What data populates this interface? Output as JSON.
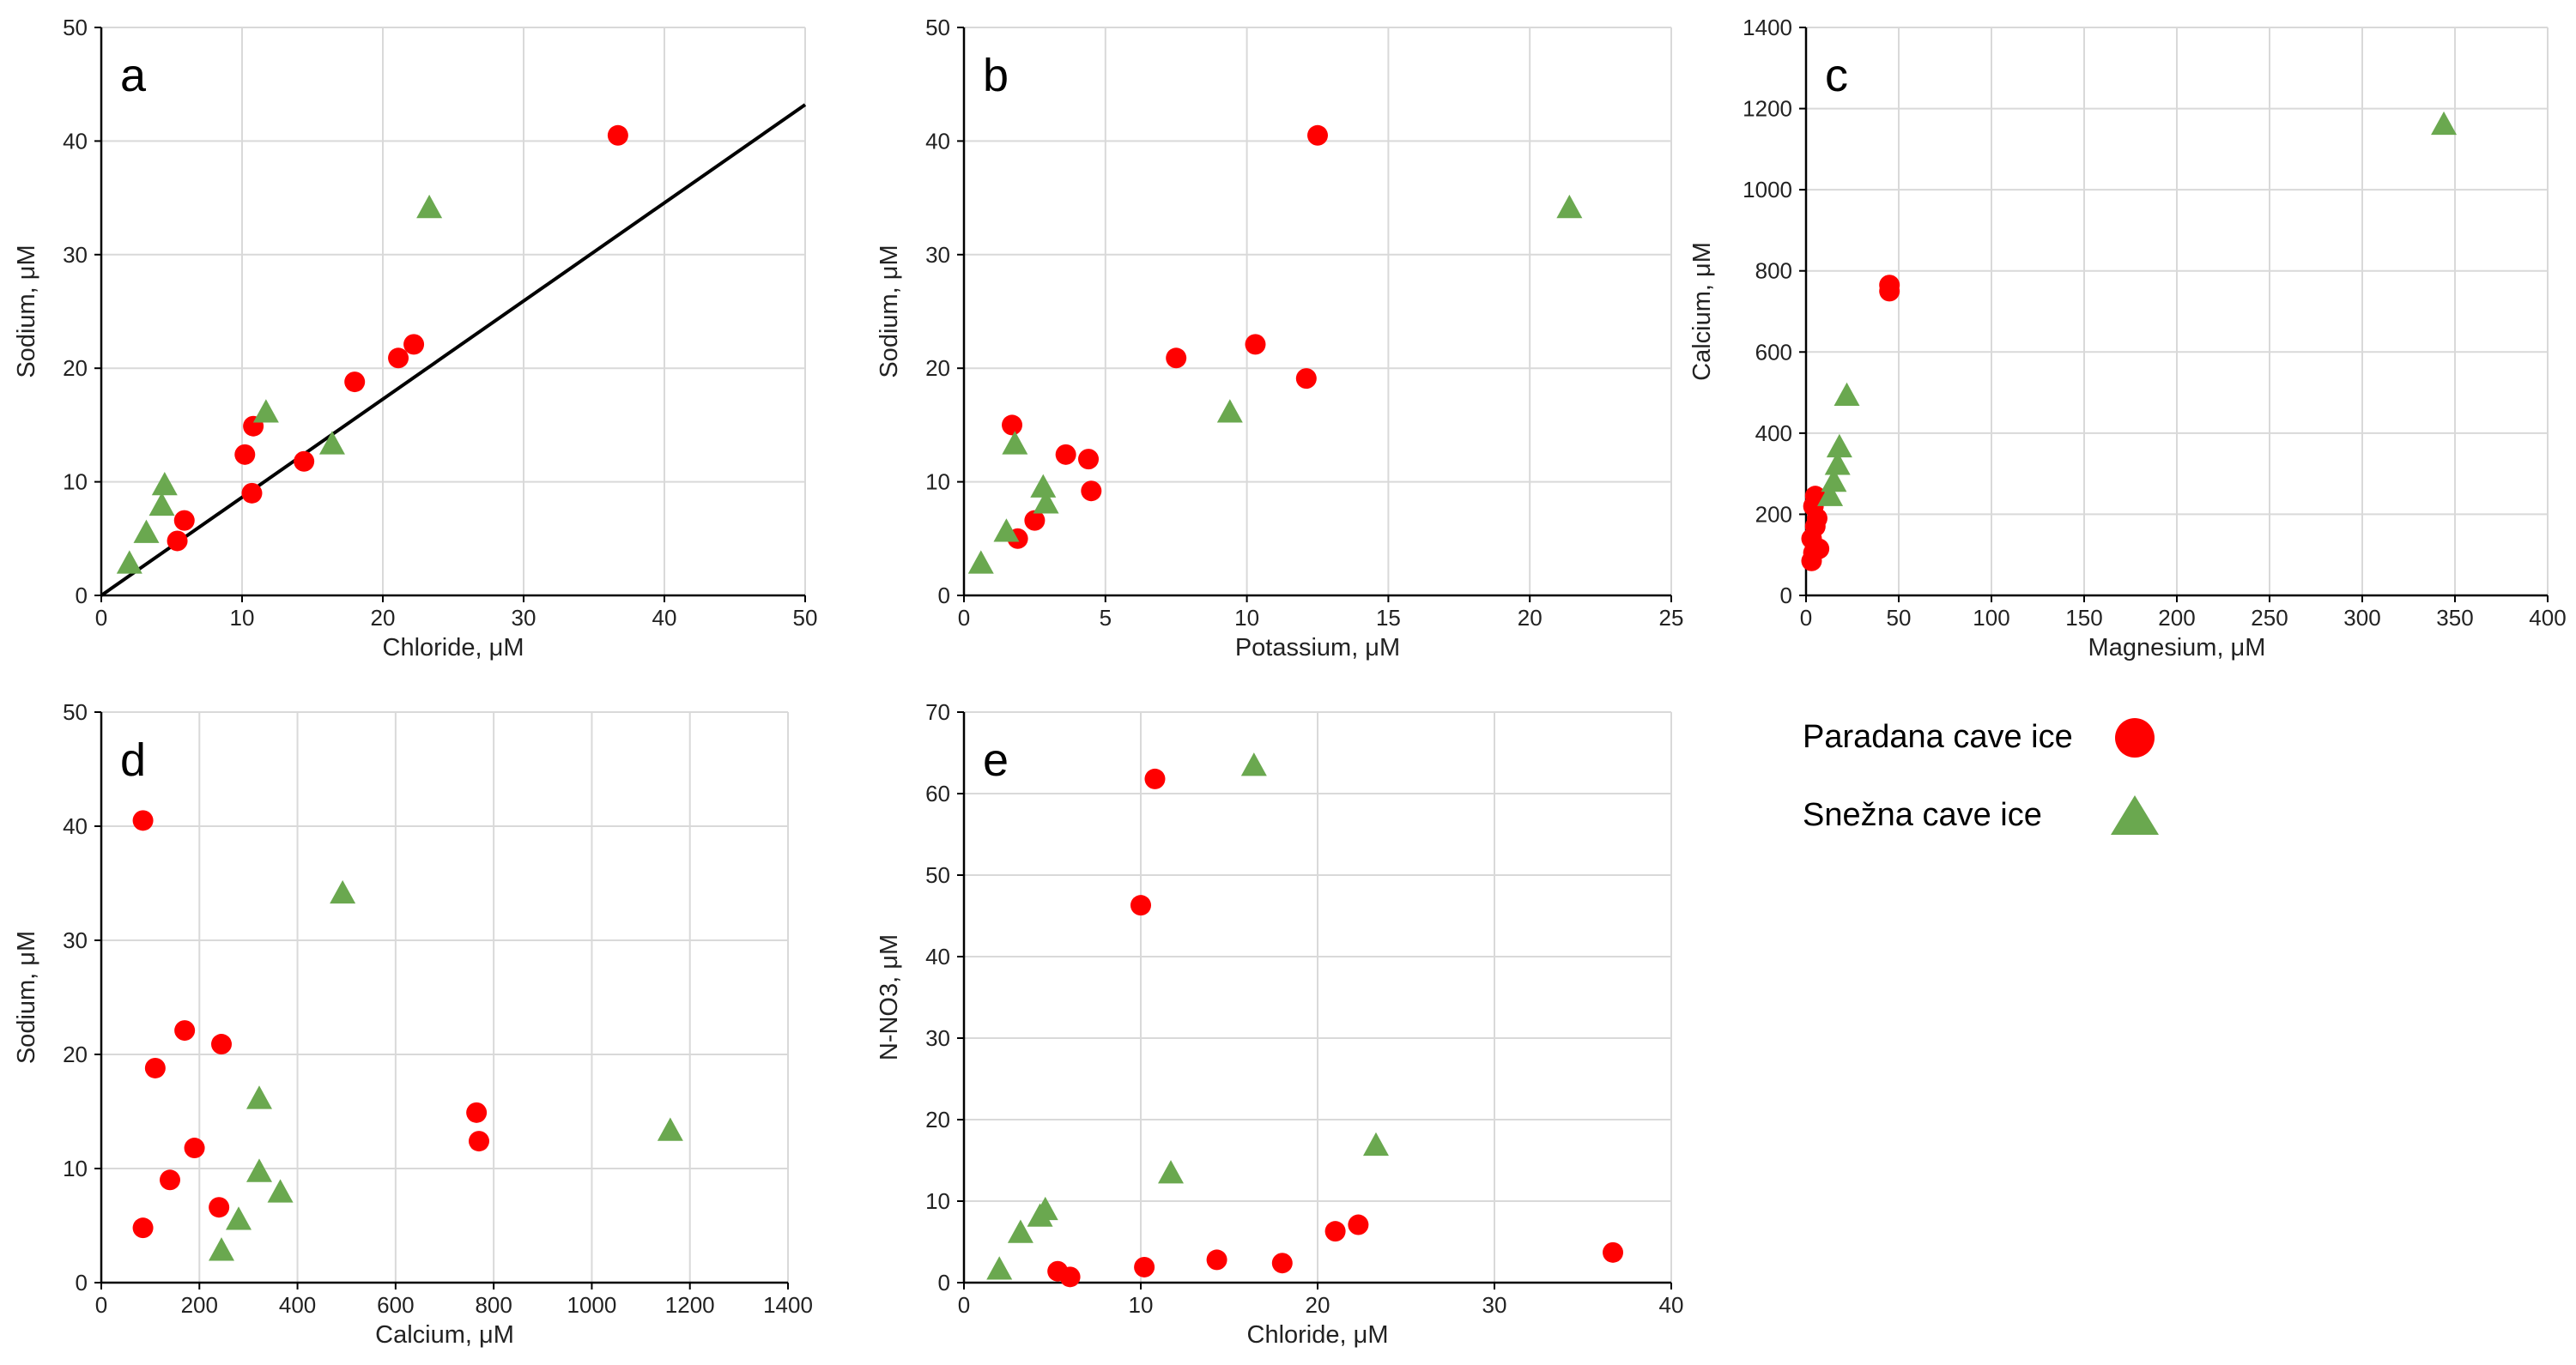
{
  "colors": {
    "paradana": "#ff0000",
    "snezna": "#6aa84f",
    "grid": "#d9d9d9",
    "axis": "#000000",
    "fit_line": "#000000"
  },
  "legend": {
    "items": [
      {
        "label": "Paradana cave ice",
        "marker": "circle",
        "color": "#ff0000"
      },
      {
        "label": "Snežna cave ice",
        "marker": "triangle",
        "color": "#6aa84f"
      }
    ]
  },
  "chart_data": [
    {
      "id": "a",
      "letter": "a",
      "type": "scatter",
      "xlabel": "Chloride, μM",
      "ylabel": "Sodium, μM",
      "xlim": [
        0,
        50
      ],
      "ylim": [
        0,
        50
      ],
      "xticks": [
        0,
        10,
        20,
        30,
        40,
        50
      ],
      "yticks": [
        0,
        10,
        20,
        30,
        40,
        50
      ],
      "tick_labels_x": [
        "0",
        "10",
        "20",
        "30",
        "40",
        "50"
      ],
      "tick_labels_y": [
        "0",
        "10",
        "20",
        "30",
        "40",
        "50"
      ],
      "line": {
        "x": [
          0,
          50
        ],
        "y": [
          0,
          43.2
        ]
      },
      "series": [
        {
          "name": "Paradana cave ice",
          "marker": "circle",
          "points": [
            [
              36.7,
              40.5
            ],
            [
              22.2,
              22.1
            ],
            [
              21.1,
              20.9
            ],
            [
              18.0,
              18.8
            ],
            [
              10.8,
              14.9
            ],
            [
              10.2,
              12.4
            ],
            [
              14.4,
              11.8
            ],
            [
              10.7,
              9.0
            ],
            [
              5.9,
              6.6
            ],
            [
              5.4,
              4.8
            ]
          ]
        },
        {
          "name": "Snežna cave ice",
          "marker": "triangle",
          "points": [
            [
              23.3,
              34.1
            ],
            [
              11.7,
              16.1
            ],
            [
              16.4,
              13.3
            ],
            [
              4.5,
              9.7
            ],
            [
              4.3,
              7.9
            ],
            [
              3.2,
              5.5
            ],
            [
              2.0,
              2.8
            ]
          ]
        }
      ]
    },
    {
      "id": "b",
      "letter": "b",
      "type": "scatter",
      "xlabel": "Potassium, μM",
      "ylabel": "Sodium, μM",
      "xlim": [
        0,
        25
      ],
      "ylim": [
        0,
        50
      ],
      "xticks": [
        0,
        5,
        10,
        15,
        20,
        25
      ],
      "yticks": [
        0,
        10,
        20,
        30,
        40,
        50
      ],
      "tick_labels_x": [
        "0",
        "5",
        "10",
        "15",
        "20",
        "25"
      ],
      "tick_labels_y": [
        "0",
        "10",
        "20",
        "30",
        "40",
        "50"
      ],
      "series": [
        {
          "name": "Paradana cave ice",
          "marker": "circle",
          "points": [
            [
              12.5,
              40.5
            ],
            [
              10.3,
              22.1
            ],
            [
              7.5,
              20.9
            ],
            [
              12.1,
              19.1
            ],
            [
              1.7,
              15.0
            ],
            [
              3.6,
              12.4
            ],
            [
              4.4,
              12.0
            ],
            [
              4.5,
              9.2
            ],
            [
              2.5,
              6.6
            ],
            [
              1.9,
              5.0
            ]
          ]
        },
        {
          "name": "Snežna cave ice",
          "marker": "triangle",
          "points": [
            [
              21.4,
              34.1
            ],
            [
              9.4,
              16.1
            ],
            [
              1.8,
              13.3
            ],
            [
              2.8,
              9.5
            ],
            [
              2.9,
              8.1
            ],
            [
              1.5,
              5.6
            ],
            [
              0.6,
              2.8
            ]
          ]
        }
      ]
    },
    {
      "id": "c",
      "letter": "c",
      "type": "scatter",
      "xlabel": "Magnesium, μM",
      "ylabel": "Calcium, μM",
      "xlim": [
        0,
        400
      ],
      "ylim": [
        0,
        1400
      ],
      "xticks": [
        0,
        50,
        100,
        150,
        200,
        250,
        300,
        350,
        400
      ],
      "yticks": [
        0,
        200,
        400,
        600,
        800,
        1000,
        1200,
        1400
      ],
      "tick_labels_x": [
        "0",
        "50",
        "100",
        "150",
        "200",
        "250",
        "300",
        "350",
        "400"
      ],
      "tick_labels_y": [
        "0",
        "200",
        "400",
        "600",
        "800",
        "1000",
        "1200",
        "1400"
      ],
      "series": [
        {
          "name": "Paradana cave ice",
          "marker": "circle",
          "points": [
            [
              45,
              765
            ],
            [
              45,
              750
            ],
            [
              5,
              245
            ],
            [
              4,
              220
            ],
            [
              6,
              190
            ],
            [
              5,
              170
            ],
            [
              3,
              140
            ],
            [
              7,
              115
            ],
            [
              4,
              105
            ],
            [
              3,
              85
            ]
          ]
        },
        {
          "name": "Snežna cave ice",
          "marker": "triangle",
          "points": [
            [
              344,
              1160
            ],
            [
              22,
              492
            ],
            [
              18,
              365
            ],
            [
              17,
              322
            ],
            [
              15,
              280
            ],
            [
              13,
              245
            ]
          ]
        }
      ]
    },
    {
      "id": "d",
      "letter": "d",
      "type": "scatter",
      "xlabel": "Calcium, μM",
      "ylabel": "Sodium, μM",
      "xlim": [
        0,
        1400
      ],
      "ylim": [
        0,
        50
      ],
      "xticks": [
        0,
        200,
        400,
        600,
        800,
        1000,
        1200,
        1400
      ],
      "yticks": [
        0,
        10,
        20,
        30,
        40,
        50
      ],
      "tick_labels_x": [
        "0",
        "200",
        "400",
        "600",
        "800",
        "1000",
        "1200",
        "1400"
      ],
      "tick_labels_y": [
        "0",
        "10",
        "20",
        "30",
        "40",
        "50"
      ],
      "series": [
        {
          "name": "Paradana cave ice",
          "marker": "circle",
          "points": [
            [
              85,
              40.5
            ],
            [
              170,
              22.1
            ],
            [
              245,
              20.9
            ],
            [
              110,
              18.8
            ],
            [
              765,
              14.9
            ],
            [
              770,
              12.4
            ],
            [
              190,
              11.8
            ],
            [
              140,
              9.0
            ],
            [
              240,
              6.6
            ],
            [
              85,
              4.8
            ]
          ]
        },
        {
          "name": "Snežna cave ice",
          "marker": "triangle",
          "points": [
            [
              492,
              34.1
            ],
            [
              322,
              16.1
            ],
            [
              1160,
              13.3
            ],
            [
              322,
              9.7
            ],
            [
              365,
              7.9
            ],
            [
              280,
              5.5
            ],
            [
              245,
              2.8
            ]
          ]
        }
      ]
    },
    {
      "id": "e",
      "letter": "e",
      "type": "scatter",
      "xlabel": "Chloride, μM",
      "ylabel": "N-NO3, μM",
      "xlim": [
        0,
        40
      ],
      "ylim": [
        0,
        70
      ],
      "xticks": [
        0,
        10,
        20,
        30,
        40
      ],
      "yticks": [
        0,
        10,
        20,
        30,
        40,
        50,
        60,
        70
      ],
      "tick_labels_x": [
        "0",
        "10",
        "20",
        "30",
        "40"
      ],
      "tick_labels_y": [
        "0",
        "10",
        "20",
        "30",
        "40",
        "50",
        "60",
        "70"
      ],
      "series": [
        {
          "name": "Paradana cave ice",
          "marker": "circle",
          "points": [
            [
              10.8,
              61.8
            ],
            [
              10.0,
              46.3
            ],
            [
              22.3,
              7.1
            ],
            [
              21.0,
              6.3
            ],
            [
              36.7,
              3.7
            ],
            [
              14.3,
              2.8
            ],
            [
              18.0,
              2.4
            ],
            [
              10.2,
              1.9
            ],
            [
              5.3,
              1.4
            ],
            [
              6.0,
              0.7
            ]
          ]
        },
        {
          "name": "Snežna cave ice",
          "marker": "triangle",
          "points": [
            [
              16.4,
              63.4
            ],
            [
              23.3,
              16.8
            ],
            [
              11.7,
              13.4
            ],
            [
              4.6,
              8.9
            ],
            [
              4.3,
              8.1
            ],
            [
              3.2,
              6.1
            ],
            [
              2.0,
              1.6
            ]
          ]
        }
      ]
    }
  ]
}
